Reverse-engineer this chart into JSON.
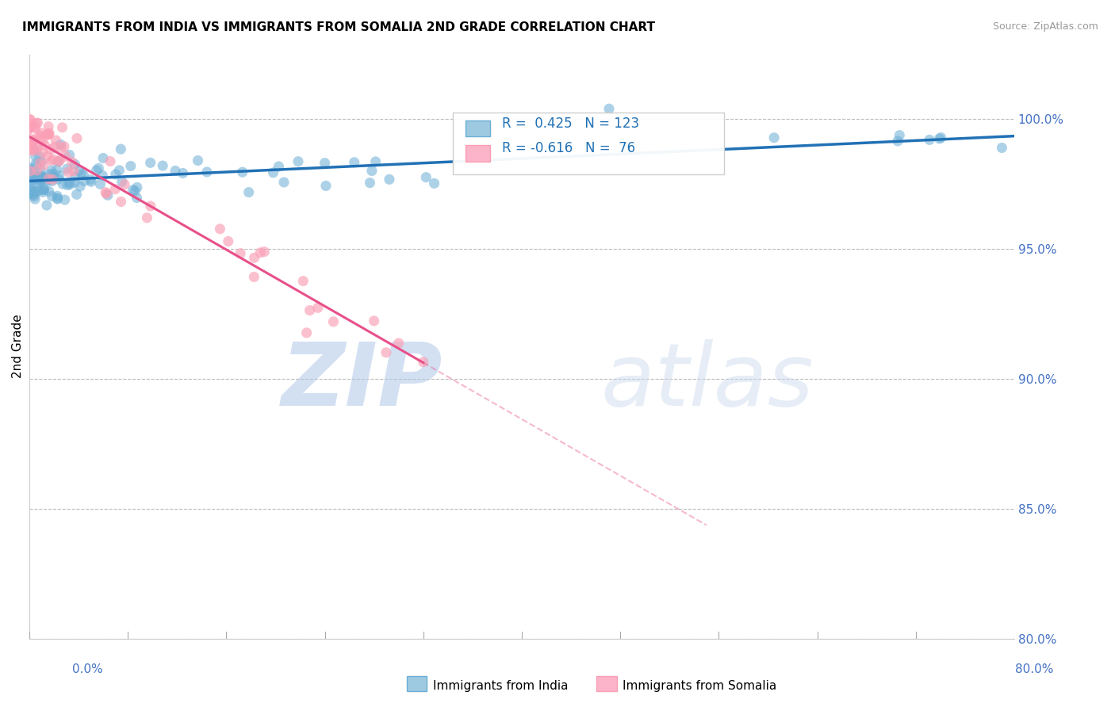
{
  "title": "IMMIGRANTS FROM INDIA VS IMMIGRANTS FROM SOMALIA 2ND GRADE CORRELATION CHART",
  "source": "Source: ZipAtlas.com",
  "ylabel_label": "2nd Grade",
  "xmin": 0.0,
  "xmax": 80.0,
  "ymin": 80.0,
  "ymax": 102.5,
  "india_R": 0.425,
  "india_N": 123,
  "somalia_R": -0.616,
  "somalia_N": 76,
  "india_color": "#6baed6",
  "somalia_color": "#fa9fb5",
  "india_line_color": "#2171b5",
  "somalia_line_color": "#e8508a",
  "india_label": "Immigrants from India",
  "somalia_label": "Immigrants from Somalia",
  "watermark_zip": "ZIP",
  "watermark_atlas": "atlas",
  "legend_india_color": "#9ecae1",
  "legend_somalia_color": "#fbb4c9",
  "ytick_100": 100.0,
  "ytick_95": 95.0,
  "ytick_90": 90.0,
  "ytick_85": 85.0,
  "ytick_80": 80.0
}
